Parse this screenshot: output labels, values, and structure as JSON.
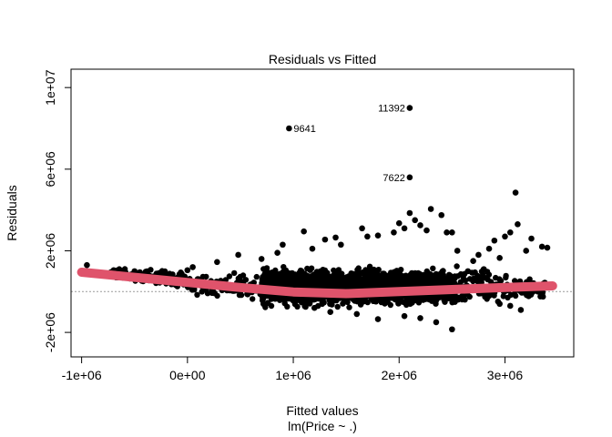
{
  "chart_data": {
    "type": "scatter",
    "title": "Residuals vs Fitted",
    "xlabel": "Fitted values",
    "subtitle": "lm(Price ~ .)",
    "ylabel": "Residuals",
    "xlim": [
      -1100000,
      3650000
    ],
    "ylim": [
      -3200000,
      10900000
    ],
    "x_ticks": [
      {
        "value": -1000000,
        "label": "-1e+06"
      },
      {
        "value": 0,
        "label": "0e+00"
      },
      {
        "value": 1000000,
        "label": "1e+06"
      },
      {
        "value": 2000000,
        "label": "2e+06"
      },
      {
        "value": 3000000,
        "label": "3e+06"
      }
    ],
    "y_ticks": [
      {
        "value": -2000000,
        "label": "-2e+06"
      },
      {
        "value": 2000000,
        "label": "2e+06"
      },
      {
        "value": 6000000,
        "label": "6e+06"
      },
      {
        "value": 10000000,
        "label": "1e+07"
      }
    ],
    "zero_reference_line": 0,
    "point_color": "#000000",
    "smooth_color": "#DF536B",
    "reference_line_color": "#9A9A9A",
    "labeled_points": [
      {
        "label": "11392",
        "x": 2100000,
        "y": 9000000,
        "label_side": "left"
      },
      {
        "label": "9641",
        "x": 960000,
        "y": 8000000,
        "label_side": "right"
      },
      {
        "label": "7622",
        "x": 2100000,
        "y": 5600000,
        "label_side": "left"
      }
    ],
    "outlier_points": [
      {
        "x": -950000,
        "y": 1300000
      },
      {
        "x": -500000,
        "y": 1000000
      },
      {
        "x": -450000,
        "y": 950000
      },
      {
        "x": 0,
        "y": 1050000
      },
      {
        "x": 50000,
        "y": 1200000
      },
      {
        "x": 280000,
        "y": 1450000
      },
      {
        "x": 480000,
        "y": 1800000
      },
      {
        "x": 700000,
        "y": 1600000
      },
      {
        "x": 850000,
        "y": 1900000
      },
      {
        "x": 900000,
        "y": 2300000
      },
      {
        "x": 1100000,
        "y": 2950000
      },
      {
        "x": 1180000,
        "y": 2100000
      },
      {
        "x": 1300000,
        "y": 2550000
      },
      {
        "x": 1400000,
        "y": 2650000
      },
      {
        "x": 1450000,
        "y": 2300000
      },
      {
        "x": 1650000,
        "y": 3100000
      },
      {
        "x": 1700000,
        "y": 2700000
      },
      {
        "x": 1800000,
        "y": 2750000
      },
      {
        "x": 1950000,
        "y": 2900000
      },
      {
        "x": 2000000,
        "y": 3350000
      },
      {
        "x": 2050000,
        "y": 3100000
      },
      {
        "x": 2100000,
        "y": 3850000
      },
      {
        "x": 2150000,
        "y": 3500000
      },
      {
        "x": 2200000,
        "y": 3250000
      },
      {
        "x": 2260000,
        "y": 3000000
      },
      {
        "x": 2300000,
        "y": 4050000
      },
      {
        "x": 2400000,
        "y": 3750000
      },
      {
        "x": 2450000,
        "y": 2900000
      },
      {
        "x": 2500000,
        "y": 2900000
      },
      {
        "x": 2550000,
        "y": 2000000
      },
      {
        "x": 2600000,
        "y": -200000
      },
      {
        "x": 2650000,
        "y": 1000000
      },
      {
        "x": 2700000,
        "y": 1500000
      },
      {
        "x": 2750000,
        "y": 1800000
      },
      {
        "x": 2800000,
        "y": 1100000
      },
      {
        "x": 2850000,
        "y": 2100000
      },
      {
        "x": 2900000,
        "y": 2500000
      },
      {
        "x": 2950000,
        "y": 1650000
      },
      {
        "x": 3000000,
        "y": 2700000
      },
      {
        "x": 3050000,
        "y": 2900000
      },
      {
        "x": 3100000,
        "y": 4850000
      },
      {
        "x": 3120000,
        "y": 3300000
      },
      {
        "x": 3200000,
        "y": 2000000
      },
      {
        "x": 3250000,
        "y": 2600000
      },
      {
        "x": 3350000,
        "y": 2200000
      },
      {
        "x": 3400000,
        "y": 2150000
      },
      {
        "x": 3150000,
        "y": -900000
      },
      {
        "x": 3050000,
        "y": -700000
      },
      {
        "x": 2950000,
        "y": -600000
      },
      {
        "x": 2500000,
        "y": -1850000
      },
      {
        "x": 2350000,
        "y": -1500000
      },
      {
        "x": 2200000,
        "y": -1300000
      },
      {
        "x": 2050000,
        "y": -1200000
      },
      {
        "x": 1800000,
        "y": -1350000
      },
      {
        "x": 1600000,
        "y": -1100000
      },
      {
        "x": 1350000,
        "y": -1000000
      },
      {
        "x": 1200000,
        "y": -800000
      }
    ],
    "dense_point_cloud": {
      "x_range": [
        -750000,
        3400000
      ],
      "core_x_range": [
        700000,
        2500000
      ],
      "core_y_range": [
        -1300000,
        2000000
      ]
    },
    "smooth_curve": [
      {
        "x": -1000000,
        "y": 950000
      },
      {
        "x": -500000,
        "y": 700000
      },
      {
        "x": 0,
        "y": 450000
      },
      {
        "x": 500000,
        "y": 200000
      },
      {
        "x": 1000000,
        "y": -20000
      },
      {
        "x": 1500000,
        "y": -100000
      },
      {
        "x": 2000000,
        "y": 0
      },
      {
        "x": 2500000,
        "y": 100000
      },
      {
        "x": 3000000,
        "y": 200000
      },
      {
        "x": 3450000,
        "y": 280000
      }
    ]
  }
}
